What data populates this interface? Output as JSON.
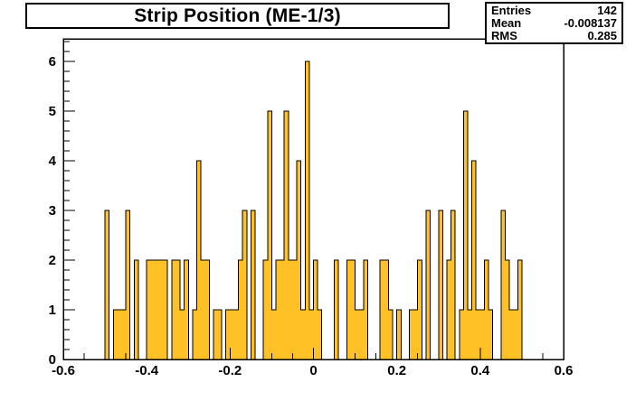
{
  "header": {
    "title": "Strip Position (ME-1/3)"
  },
  "stats": {
    "rows": [
      {
        "label": "Entries",
        "value": "142"
      },
      {
        "label": "Mean",
        "value": "-0.008137"
      },
      {
        "label": "RMS",
        "value": "0.285"
      }
    ]
  },
  "colors": {
    "bar_fill": "#FFC125",
    "bar_outline": "#000000",
    "frame": "#000000",
    "background": "#FFFFFF",
    "text": "#000000"
  },
  "chart_data": {
    "type": "bar",
    "title": "Strip Position (ME-1/3)",
    "xlabel": "",
    "ylabel": "",
    "xlim": [
      -0.6,
      0.6
    ],
    "ylim": [
      0,
      6.45
    ],
    "grid": false,
    "legend": "none",
    "bin_start": -0.5,
    "bin_width": 0.01,
    "counts": [
      3,
      0,
      1,
      1,
      1,
      3,
      0,
      2,
      0,
      0,
      2,
      2,
      2,
      2,
      2,
      0,
      2,
      2,
      1,
      2,
      0,
      1,
      4,
      2,
      2,
      0,
      1,
      1,
      0,
      1,
      1,
      1,
      2,
      3,
      0,
      3,
      0,
      0,
      2,
      5,
      1,
      2,
      2,
      5,
      2,
      2,
      4,
      1,
      6,
      1,
      2,
      1,
      0,
      0,
      0,
      2,
      0,
      0,
      2,
      2,
      1,
      1,
      2,
      0,
      0,
      0,
      2,
      2,
      1,
      0,
      1,
      0,
      0,
      1,
      1,
      2,
      0,
      3,
      0,
      0,
      3,
      0,
      2,
      3,
      0,
      1,
      5,
      1,
      4,
      1,
      1,
      2,
      1,
      0,
      0,
      3,
      2,
      1,
      1,
      2
    ],
    "x_ticks": [
      -0.6,
      -0.4,
      -0.2,
      0,
      0.2,
      0.4,
      0.6
    ],
    "x_ticklabels": [
      "-0.6",
      "-0.4",
      "-0.2",
      "0",
      "0.2",
      "0.4",
      "0.6"
    ],
    "x_minor_step": 0.05,
    "y_ticks": [
      0,
      1,
      2,
      3,
      4,
      5,
      6
    ],
    "y_ticklabels": [
      "0",
      "1",
      "2",
      "3",
      "4",
      "5",
      "6"
    ],
    "y_minor_step": 0.2,
    "entries": 142,
    "mean": -0.008137,
    "rms": 0.285
  }
}
